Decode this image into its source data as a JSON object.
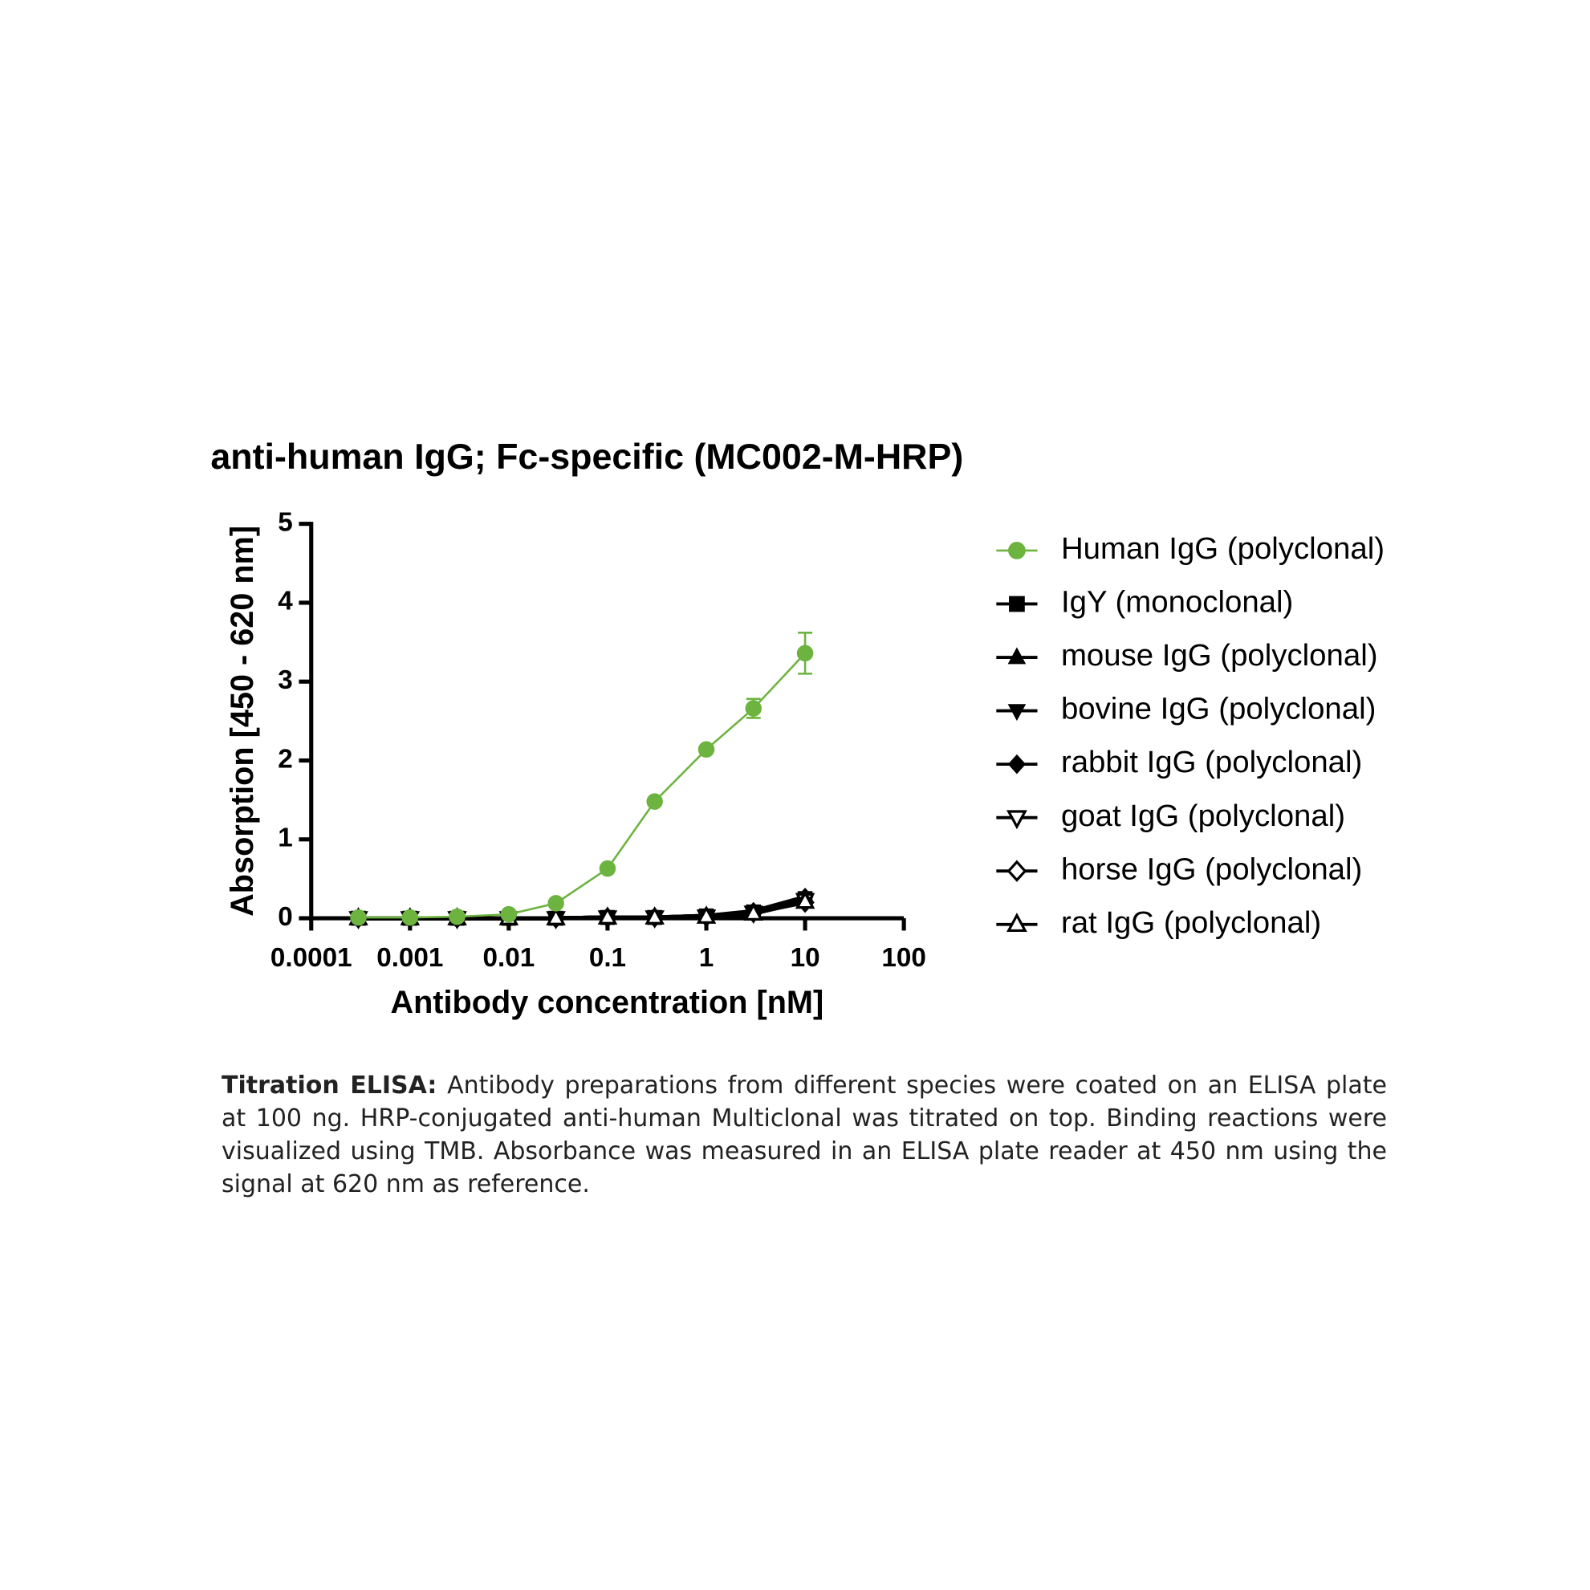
{
  "chart_data": {
    "type": "line",
    "title": "anti-human IgG; Fc-specific (MC002-M-HRP)",
    "x_label": "Antibody concentration [nM]",
    "y_label": "Absorption [450 - 620 nm]",
    "x_scale": "log",
    "xlim": [
      0.0001,
      100
    ],
    "xticks": [
      0.0001,
      0.001,
      0.01,
      0.1,
      1,
      10,
      100
    ],
    "ylim": [
      0,
      5
    ],
    "yticks": [
      0,
      1,
      2,
      3,
      4,
      5
    ],
    "legend": "right",
    "x": [
      0.0003,
      0.001,
      0.003,
      0.01,
      0.03,
      0.1,
      0.3,
      1,
      3,
      10
    ],
    "series": [
      {
        "name": "Human IgG (polyclonal)",
        "color": "#6db33f",
        "marker": "circle",
        "filled": true,
        "values": [
          0.01,
          0.01,
          0.02,
          0.05,
          0.19,
          0.63,
          1.48,
          2.14,
          2.66,
          3.36
        ],
        "errors": [
          null,
          null,
          null,
          null,
          null,
          null,
          null,
          null,
          0.12,
          0.26
        ]
      },
      {
        "name": "IgY (monoclonal)",
        "color": "#000000",
        "marker": "square",
        "filled": true,
        "values": [
          0,
          0,
          0,
          0,
          0,
          0.01,
          0.01,
          0.03,
          0.08,
          0.25
        ]
      },
      {
        "name": "mouse IgG (polyclonal)",
        "color": "#000000",
        "marker": "triangle-up",
        "filled": true,
        "values": [
          0,
          0,
          0,
          0,
          0,
          0.01,
          0.01,
          0.02,
          0.07,
          0.22
        ]
      },
      {
        "name": "bovine IgG (polyclonal)",
        "color": "#000000",
        "marker": "triangle-down",
        "filled": true,
        "values": [
          0,
          0,
          0,
          0,
          0,
          0.01,
          0.01,
          0.03,
          0.08,
          0.24
        ]
      },
      {
        "name": "rabbit IgG (polyclonal)",
        "color": "#000000",
        "marker": "diamond",
        "filled": true,
        "values": [
          0,
          0,
          0,
          0,
          0,
          0.01,
          0.01,
          0.03,
          0.09,
          0.27
        ]
      },
      {
        "name": "goat IgG (polyclonal)",
        "color": "#000000",
        "marker": "triangle-down",
        "filled": false,
        "values": [
          0,
          0,
          0,
          0,
          0,
          0.01,
          0.01,
          0.02,
          0.07,
          0.23
        ]
      },
      {
        "name": "horse IgG (polyclonal)",
        "color": "#000000",
        "marker": "diamond",
        "filled": false,
        "values": [
          0,
          0,
          0,
          0,
          0,
          0.01,
          0.01,
          0.02,
          0.07,
          0.2
        ]
      },
      {
        "name": "rat IgG (polyclonal)",
        "color": "#000000",
        "marker": "triangle-up",
        "filled": false,
        "values": [
          0,
          0,
          0,
          0,
          0,
          0.01,
          0.01,
          0.02,
          0.06,
          0.21
        ]
      }
    ]
  },
  "caption": {
    "label": "Titration ELISA:",
    "text": "Antibody preparations from different species were coated on an ELISA plate at 100 ng. HRP-conjugated anti-human Multiclonal was titrated on top. Binding reactions were visualized using TMB. Absorbance was measured in an ELISA plate reader at 450 nm using the signal at 620 nm as reference."
  }
}
